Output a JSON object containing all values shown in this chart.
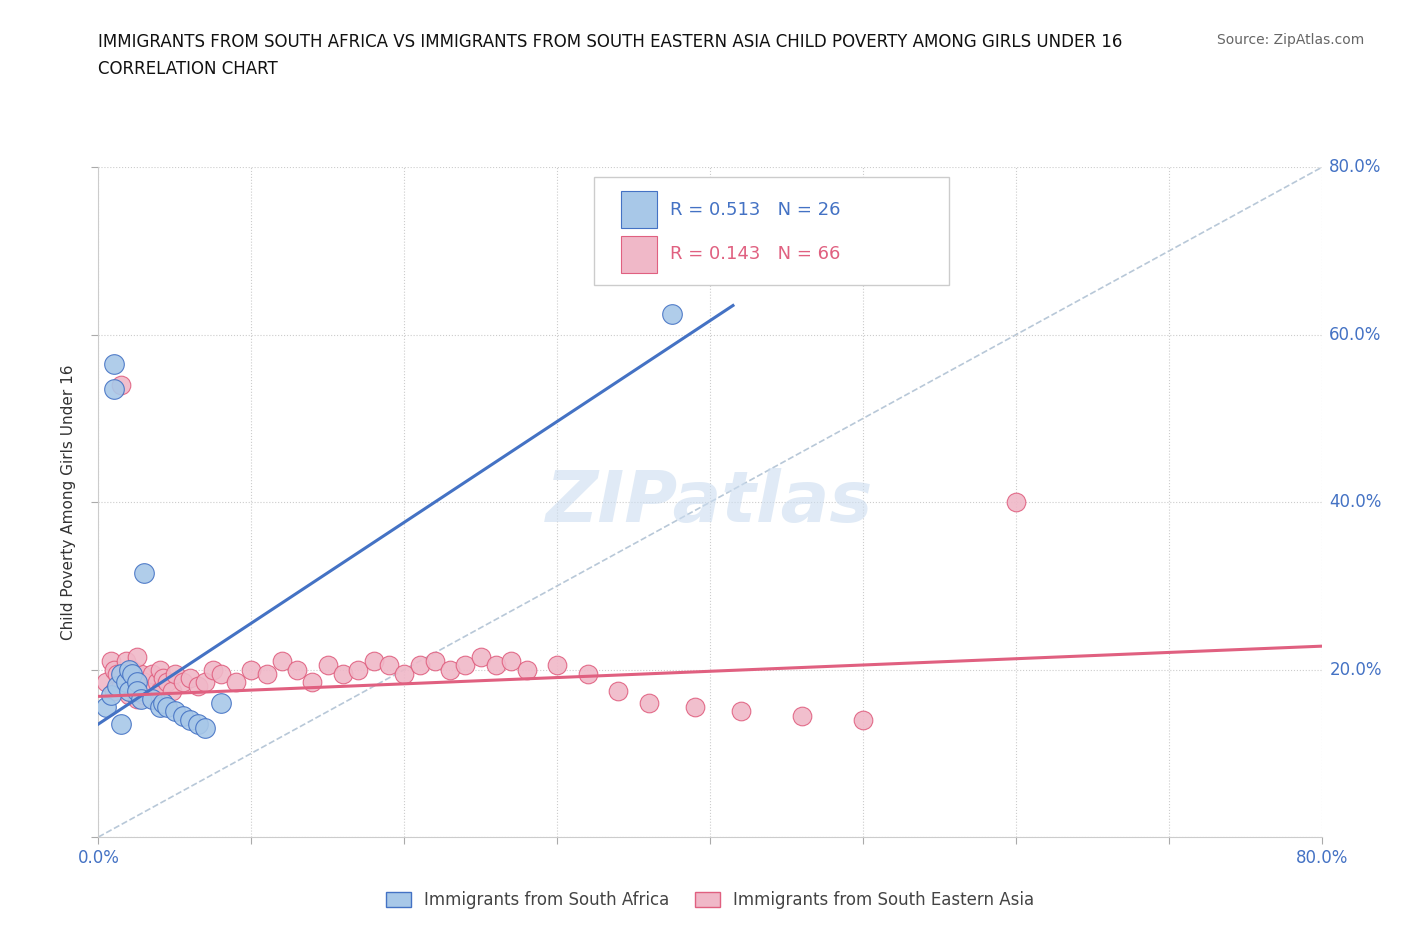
{
  "title_line1": "IMMIGRANTS FROM SOUTH AFRICA VS IMMIGRANTS FROM SOUTH EASTERN ASIA CHILD POVERTY AMONG GIRLS UNDER 16",
  "title_line2": "CORRELATION CHART",
  "source": "Source: ZipAtlas.com",
  "ylabel": "Child Poverty Among Girls Under 16",
  "xlim": [
    0.0,
    0.8
  ],
  "ylim": [
    0.0,
    0.8
  ],
  "grid_color": "#cccccc",
  "background_color": "#ffffff",
  "legend_r1": "R = 0.513",
  "legend_n1": "N = 26",
  "legend_r2": "R = 0.143",
  "legend_n2": "N = 66",
  "color_blue": "#a8c8e8",
  "color_pink": "#f0b8c8",
  "color_blue_line": "#4472c4",
  "color_pink_line": "#e06080",
  "color_diag": "#b8c8d8",
  "label1": "Immigrants from South Africa",
  "label2": "Immigrants from South Eastern Asia",
  "blue_x": [
    0.005,
    0.008,
    0.01,
    0.01,
    0.012,
    0.015,
    0.018,
    0.02,
    0.02,
    0.022,
    0.025,
    0.025,
    0.028,
    0.03,
    0.035,
    0.04,
    0.042,
    0.045,
    0.05,
    0.055,
    0.06,
    0.065,
    0.07,
    0.08,
    0.375,
    0.015
  ],
  "blue_y": [
    0.155,
    0.17,
    0.565,
    0.535,
    0.18,
    0.195,
    0.185,
    0.2,
    0.175,
    0.195,
    0.185,
    0.175,
    0.165,
    0.315,
    0.165,
    0.155,
    0.16,
    0.155,
    0.15,
    0.145,
    0.14,
    0.135,
    0.13,
    0.16,
    0.625,
    0.135
  ],
  "pink_x": [
    0.005,
    0.008,
    0.01,
    0.01,
    0.012,
    0.015,
    0.015,
    0.018,
    0.018,
    0.02,
    0.02,
    0.022,
    0.022,
    0.025,
    0.025,
    0.025,
    0.028,
    0.028,
    0.03,
    0.03,
    0.032,
    0.035,
    0.035,
    0.038,
    0.04,
    0.04,
    0.042,
    0.045,
    0.048,
    0.05,
    0.055,
    0.06,
    0.065,
    0.07,
    0.075,
    0.08,
    0.09,
    0.1,
    0.11,
    0.12,
    0.13,
    0.14,
    0.15,
    0.16,
    0.17,
    0.18,
    0.19,
    0.2,
    0.21,
    0.22,
    0.23,
    0.24,
    0.25,
    0.26,
    0.27,
    0.28,
    0.3,
    0.32,
    0.34,
    0.36,
    0.39,
    0.42,
    0.46,
    0.5,
    0.6,
    0.025
  ],
  "pink_y": [
    0.185,
    0.21,
    0.2,
    0.175,
    0.195,
    0.18,
    0.54,
    0.185,
    0.21,
    0.195,
    0.17,
    0.185,
    0.2,
    0.175,
    0.195,
    0.165,
    0.18,
    0.195,
    0.17,
    0.185,
    0.175,
    0.195,
    0.165,
    0.185,
    0.175,
    0.2,
    0.19,
    0.185,
    0.175,
    0.195,
    0.185,
    0.19,
    0.18,
    0.185,
    0.2,
    0.195,
    0.185,
    0.2,
    0.195,
    0.21,
    0.2,
    0.185,
    0.205,
    0.195,
    0.2,
    0.21,
    0.205,
    0.195,
    0.205,
    0.21,
    0.2,
    0.205,
    0.215,
    0.205,
    0.21,
    0.2,
    0.205,
    0.195,
    0.175,
    0.16,
    0.155,
    0.15,
    0.145,
    0.14,
    0.4,
    0.215
  ],
  "blue_line_x": [
    0.0,
    0.415
  ],
  "blue_line_y": [
    0.135,
    0.635
  ],
  "pink_line_x": [
    0.0,
    0.8
  ],
  "pink_line_y": [
    0.168,
    0.228
  ],
  "diag_line_x": [
    0.0,
    0.8
  ],
  "diag_line_y": [
    0.0,
    0.8
  ]
}
